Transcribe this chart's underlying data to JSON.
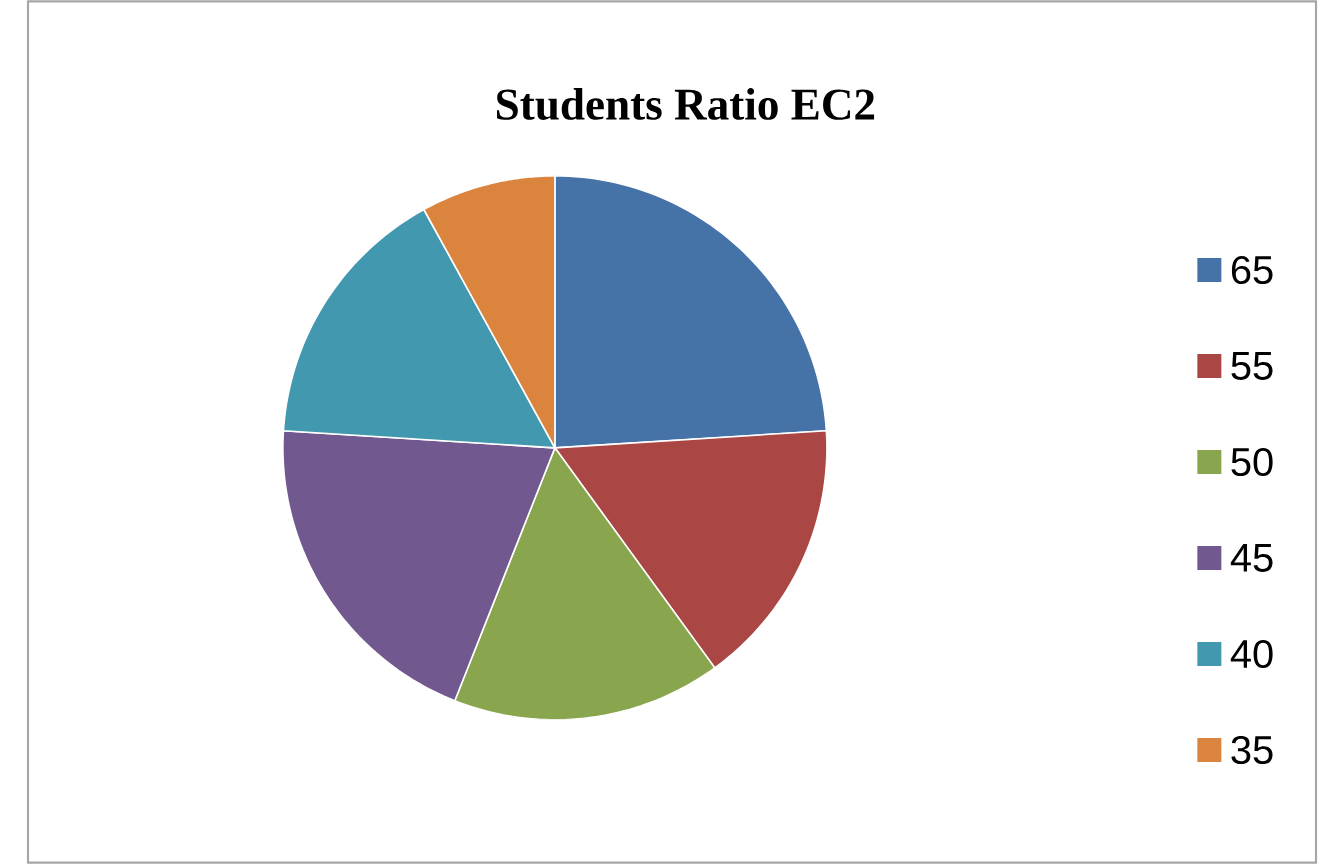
{
  "chart_data": {
    "type": "pie",
    "title": "Students Ratio EC2",
    "categories": [
      "65",
      "55",
      "50",
      "45",
      "40",
      "35"
    ],
    "values": [
      24,
      16,
      16,
      20,
      16,
      8
    ],
    "colors": [
      "#4572a7",
      "#aa4643",
      "#89a54e",
      "#71588f",
      "#4198af",
      "#db843d"
    ],
    "legend": "right"
  }
}
